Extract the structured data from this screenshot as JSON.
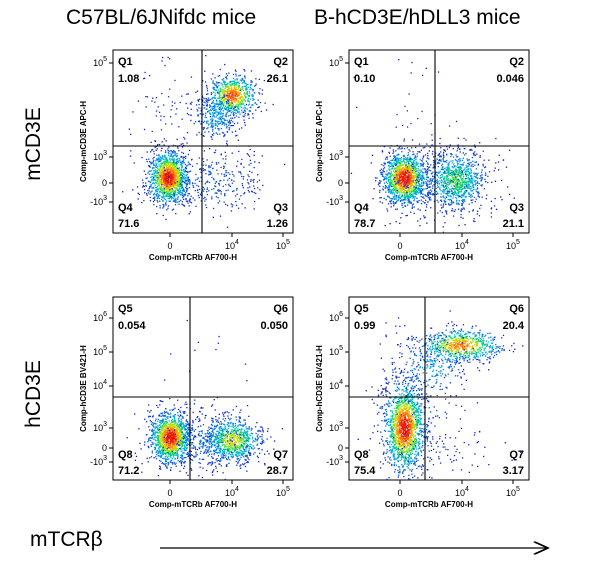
{
  "columns": [
    "C57BL/6JNifdc mice",
    "B-hCD3E/hDLL3 mice"
  ],
  "rows": [
    "mCD3E",
    "hCD3E"
  ],
  "x_axis_arrow_label": "mTCRβ",
  "chart_data": [
    {
      "type": "scatter",
      "panel": "C57BL/6JNifdc mice - mCD3E",
      "xlabel": "Comp-mTCRb AF700-H",
      "ylabel": "Comp-mCD3E APC-H",
      "x_ticks": [
        "0",
        "10^4",
        "10^5"
      ],
      "y_ticks": [
        "-10^3",
        "0",
        "10^3",
        "10^5"
      ],
      "quadrants": [
        {
          "name": "Q1",
          "value": "1.08"
        },
        {
          "name": "Q2",
          "value": "26.1"
        },
        {
          "name": "Q3",
          "value": "1.26"
        },
        {
          "name": "Q4",
          "value": "71.6"
        }
      ]
    },
    {
      "type": "scatter",
      "panel": "B-hCD3E/hDLL3 mice - mCD3E",
      "xlabel": "Comp-mTCRb AF700-H",
      "ylabel": "Comp-mCD3E APC-H",
      "x_ticks": [
        "0",
        "10^4",
        "10^5"
      ],
      "y_ticks": [
        "-10^3",
        "0",
        "10^3",
        "10^5"
      ],
      "quadrants": [
        {
          "name": "Q1",
          "value": "0.10"
        },
        {
          "name": "Q2",
          "value": "0.046"
        },
        {
          "name": "Q3",
          "value": "21.1"
        },
        {
          "name": "Q4",
          "value": "78.7"
        }
      ]
    },
    {
      "type": "scatter",
      "panel": "C57BL/6JNifdc mice - hCD3E",
      "xlabel": "Comp-mTCRb AF700-H",
      "ylabel": "Comp-hCD3E BV421-H",
      "x_ticks": [
        "0",
        "10^4",
        "10^5"
      ],
      "y_ticks": [
        "-10^3",
        "0",
        "10^3",
        "10^4",
        "10^5",
        "10^6"
      ],
      "quadrants": [
        {
          "name": "Q5",
          "value": "0.054"
        },
        {
          "name": "Q6",
          "value": "0.050"
        },
        {
          "name": "Q7",
          "value": "28.7"
        },
        {
          "name": "Q8",
          "value": "71.2"
        }
      ]
    },
    {
      "type": "scatter",
      "panel": "B-hCD3E/hDLL3 mice - hCD3E",
      "xlabel": "Comp-mTCRb AF700-H",
      "ylabel": "Comp-hCD3E BV421-H",
      "x_ticks": [
        "0",
        "10^4",
        "10^5"
      ],
      "y_ticks": [
        "-10^3",
        "0",
        "10^3",
        "10^4",
        "10^5",
        "10^6"
      ],
      "quadrants": [
        {
          "name": "Q5",
          "value": "0.99"
        },
        {
          "name": "Q6",
          "value": "20.4"
        },
        {
          "name": "Q7",
          "value": "3.17"
        },
        {
          "name": "Q8",
          "value": "75.4"
        }
      ]
    }
  ]
}
